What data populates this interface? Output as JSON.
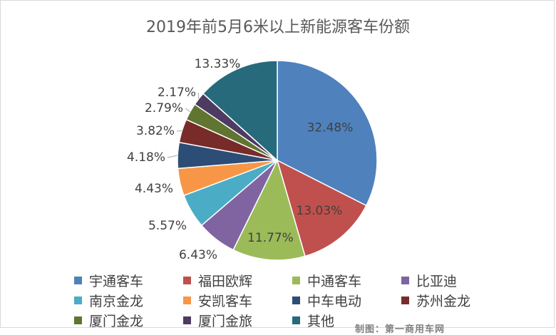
{
  "chart_data": {
    "type": "pie",
    "title": "2019年前5月6米以上新能源客车份额",
    "categories": [
      "宇通客车",
      "福田欧辉",
      "中通客车",
      "比亚迪",
      "南京金龙",
      "安凯客车",
      "中车电动",
      "苏州金龙",
      "厦门金龙",
      "厦门金旅",
      "其他"
    ],
    "values": [
      32.48,
      13.03,
      11.77,
      6.43,
      5.57,
      4.43,
      4.18,
      3.82,
      2.79,
      2.17,
      13.33
    ],
    "value_labels": [
      "32.48%",
      "13.03%",
      "11.77%",
      "6.43%",
      "5.57%",
      "4.43%",
      "4.18%",
      "3.82%",
      "2.79%",
      "2.17%",
      "13.33%"
    ],
    "colors": [
      "#4f81bd",
      "#c0504d",
      "#9bbb59",
      "#8064a2",
      "#4bacc6",
      "#f79646",
      "#2c4d75",
      "#772c2a",
      "#5f7530",
      "#4d3b62",
      "#276a7c"
    ],
    "legend_position": "bottom"
  },
  "watermark_text": "制图：第一商用车网"
}
